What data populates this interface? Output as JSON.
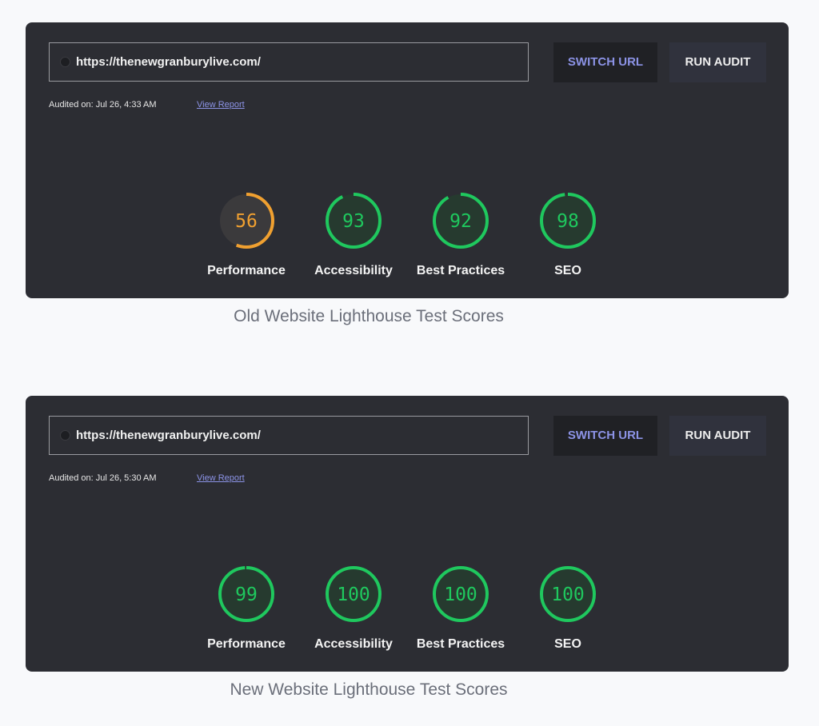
{
  "colors": {
    "good": "#1fc85e",
    "average": "#f0a030",
    "good_bg": "#263a2f",
    "average_bg": "#3b3a3c"
  },
  "panels": [
    {
      "url": "https://thenewgranburylive.com/",
      "switch_label": "SWITCH URL",
      "run_label": "RUN AUDIT",
      "audited": "Audited on: Jul 26, 4:33 AM",
      "view_report": "View Report",
      "scores": [
        {
          "label": "Performance",
          "value": "56"
        },
        {
          "label": "Accessibility",
          "value": "93"
        },
        {
          "label": "Best Practices",
          "value": "92"
        },
        {
          "label": "SEO",
          "value": "98"
        }
      ],
      "caption": "Old Website Lighthouse Test Scores"
    },
    {
      "url": "https://thenewgranburylive.com/",
      "switch_label": "SWITCH URL",
      "run_label": "RUN AUDIT",
      "audited": "Audited on: Jul 26, 5:30 AM",
      "view_report": "View Report",
      "scores": [
        {
          "label": "Performance",
          "value": "99"
        },
        {
          "label": "Accessibility",
          "value": "100"
        },
        {
          "label": "Best Practices",
          "value": "100"
        },
        {
          "label": "SEO",
          "value": "100"
        }
      ],
      "caption": "New Website Lighthouse Test Scores"
    }
  ]
}
